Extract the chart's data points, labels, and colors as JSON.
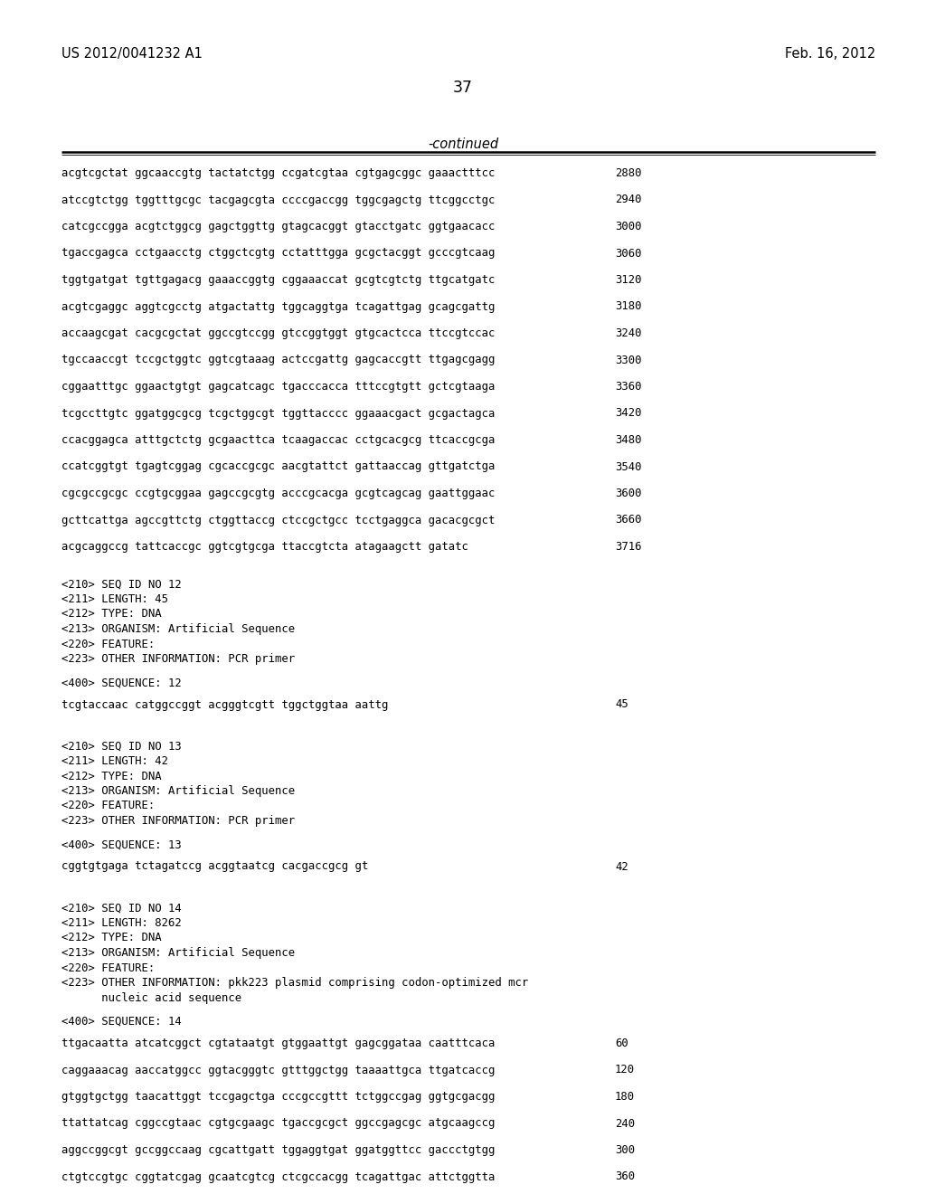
{
  "header_left": "US 2012/0041232 A1",
  "header_right": "Feb. 16, 2012",
  "page_number": "37",
  "continued_label": "-continued",
  "background_color": "#ffffff",
  "text_color": "#000000",
  "sequence_lines": [
    [
      "acgtcgctat ggcaaccgtg tactatctgg ccgatcgtaa cgtgagcggc gaaactttcc",
      "2880"
    ],
    [
      "atccgtctgg tggtttgcgc tacgagcgta ccccgaccgg tggcgagctg ttcggcctgc",
      "2940"
    ],
    [
      "catcgccgga acgtctggcg gagctggttg gtagcacggt gtacctgatc ggtgaacacc",
      "3000"
    ],
    [
      "tgaccgagca cctgaacctg ctggctcgtg cctatttgga gcgctacggt gcccgtcaag",
      "3060"
    ],
    [
      "tggtgatgat tgttgagacg gaaaccggtg cggaaaccat gcgtcgtctg ttgcatgatc",
      "3120"
    ],
    [
      "acgtcgaggc aggtcgcctg atgactattg tggcaggtga tcagattgag gcagcgattg",
      "3180"
    ],
    [
      "accaagcgat cacgcgctat ggccgtccgg gtccggtggt gtgcactcca ttccgtccac",
      "3240"
    ],
    [
      "tgccaaccgt tccgctggtc ggtcgtaaag actccgattg gagcaccgtt ttgagcgagg",
      "3300"
    ],
    [
      "cggaatttgc ggaactgtgt gagcatcagc tgacccacca tttccgtgtt gctcgtaaga",
      "3360"
    ],
    [
      "tcgccttgtc ggatggcgcg tcgctggcgt tggttacccc ggaaacgact gcgactagca",
      "3420"
    ],
    [
      "ccacggagca atttgctctg gcgaacttca tcaagaccac cctgcacgcg ttcaccgcga",
      "3480"
    ],
    [
      "ccatcggtgt tgagtcggag cgcaccgcgc aacgtattct gattaaccag gttgatctga",
      "3540"
    ],
    [
      "cgcgccgcgc ccgtgcggaa gagccgcgtg acccgcacga gcgtcagcag gaattggaac",
      "3600"
    ],
    [
      "gcttcattga agccgttctg ctggttaccg ctccgctgcc tcctgaggca gacacgcgct",
      "3660"
    ],
    [
      "acgcaggccg tattcaccgc ggtcgtgcga ttaccgtcta atagaagctt gatatc",
      "3716"
    ]
  ],
  "seq12_header": [
    "<210> SEQ ID NO 12",
    "<211> LENGTH: 45",
    "<212> TYPE: DNA",
    "<213> ORGANISM: Artificial Sequence",
    "<220> FEATURE:",
    "<223> OTHER INFORMATION: PCR primer"
  ],
  "seq12_label": "<400> SEQUENCE: 12",
  "seq12_sequence": "tcgtaccaac catggccggt acgggtcgtt tggctggtaa aattg",
  "seq12_num": "45",
  "seq13_header": [
    "<210> SEQ ID NO 13",
    "<211> LENGTH: 42",
    "<212> TYPE: DNA",
    "<213> ORGANISM: Artificial Sequence",
    "<220> FEATURE:",
    "<223> OTHER INFORMATION: PCR primer"
  ],
  "seq13_label": "<400> SEQUENCE: 13",
  "seq13_sequence": "cggtgtgaga tctagatccg acggtaatcg cacgaccgcg gt",
  "seq13_num": "42",
  "seq14_header": [
    "<210> SEQ ID NO 14",
    "<211> LENGTH: 8262",
    "<212> TYPE: DNA",
    "<213> ORGANISM: Artificial Sequence",
    "<220> FEATURE:",
    "<223> OTHER INFORMATION: pkk223 plasmid comprising codon-optimized mcr",
    "      nucleic acid sequence"
  ],
  "seq14_label": "<400> SEQUENCE: 14",
  "seq14_sequences": [
    [
      "ttgacaatta atcatcggct cgtataatgt gtggaattgt gagcggataa caatttcaca",
      "60"
    ],
    [
      "caggaaacag aaccatggcc ggtacgggtc gtttggctgg taaaattgca ttgatcaccg",
      "120"
    ],
    [
      "gtggtgctgg taacattggt tccgagctga cccgccgttt tctggccgag ggtgcgacgg",
      "180"
    ],
    [
      "ttattatcag cggccgtaac cgtgcgaagc tgaccgcgct ggccgagcgc atgcaagccg",
      "240"
    ],
    [
      "aggccggcgt gccggccaag cgcattgatt tggaggtgat ggatggttcc gaccctgtgg",
      "300"
    ],
    [
      "ctgtccgtgc cggtatcgag gcaatcgtcg ctcgccacgg tcagattgac attctggtta",
      "360"
    ]
  ]
}
